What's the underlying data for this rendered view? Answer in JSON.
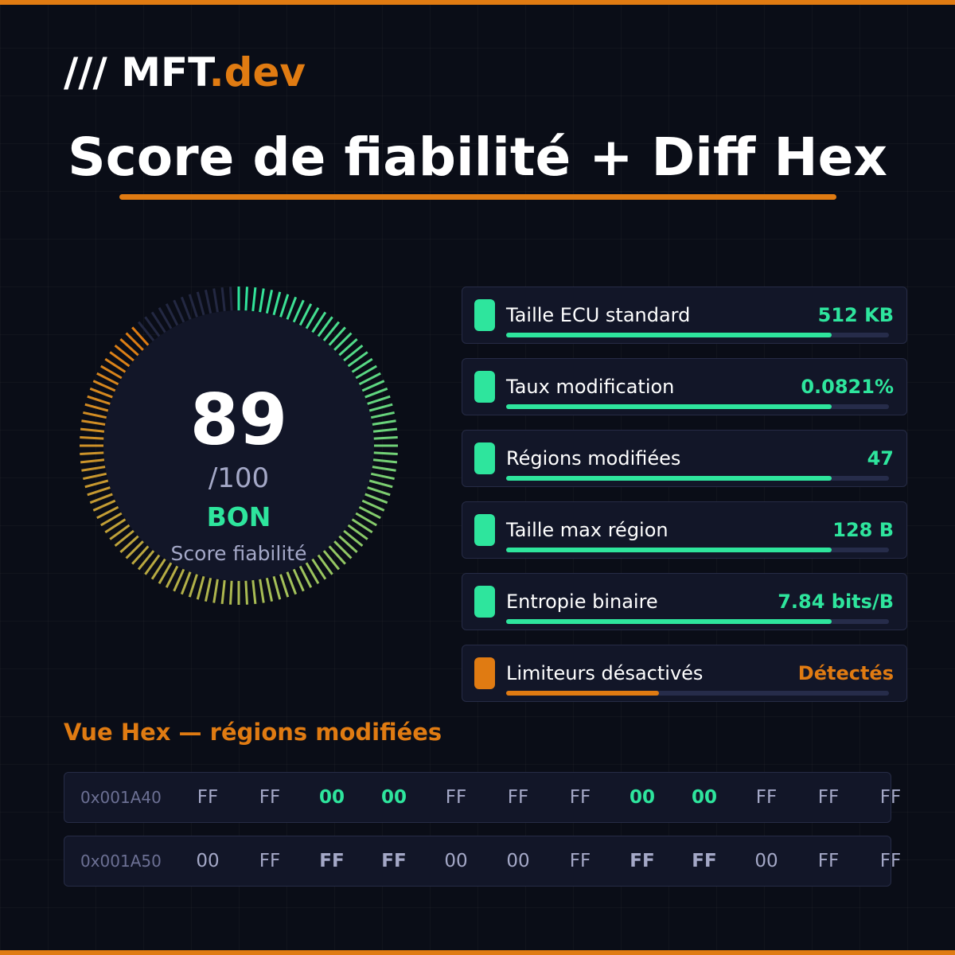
{
  "brand": {
    "slashes": "///",
    "name": "MFT",
    "tld": ".dev",
    "accent_color": "#e07b12"
  },
  "title": "Score de fiabilité + Diff Hex",
  "gauge": {
    "value": "89",
    "max_label": "/100",
    "rating": "BON",
    "caption": "Score fiabilité",
    "score": 89,
    "max": 100,
    "colors": {
      "start": "#2ee59d",
      "mid": "#a3c25a",
      "end": "#e07b12",
      "empty": "#232842"
    }
  },
  "metrics": [
    {
      "label": "Taille ECU standard",
      "value": "512 KB",
      "status": "ok",
      "fill": 0.85
    },
    {
      "label": "Taux modification",
      "value": "0.0821%",
      "status": "ok",
      "fill": 0.85
    },
    {
      "label": "Régions modifiées",
      "value": "47",
      "status": "ok",
      "fill": 0.85
    },
    {
      "label": "Taille max région",
      "value": "128 B",
      "status": "ok",
      "fill": 0.85
    },
    {
      "label": "Entropie binaire",
      "value": "7.84 bits/B",
      "status": "ok",
      "fill": 0.85
    },
    {
      "label": "Limiteurs désactivés",
      "value": "Détectés",
      "status": "warn",
      "fill": 0.4
    }
  ],
  "status_colors": {
    "ok": "#2ee59d",
    "warn": "#e07b12"
  },
  "hex": {
    "title": "Vue Hex — régions modifiées",
    "rows": [
      {
        "address": "0x001A40",
        "bytes": [
          {
            "v": "FF",
            "modified": false
          },
          {
            "v": "FF",
            "modified": false
          },
          {
            "v": "00",
            "modified": true
          },
          {
            "v": "00",
            "modified": true
          },
          {
            "v": "FF",
            "modified": false
          },
          {
            "v": "FF",
            "modified": false
          },
          {
            "v": "FF",
            "modified": false
          },
          {
            "v": "00",
            "modified": true
          },
          {
            "v": "00",
            "modified": true
          },
          {
            "v": "FF",
            "modified": false
          },
          {
            "v": "FF",
            "modified": false
          },
          {
            "v": "FF",
            "modified": false
          }
        ]
      },
      {
        "address": "0x001A50",
        "bytes": [
          {
            "v": "00",
            "modified": false
          },
          {
            "v": "FF",
            "modified": false
          },
          {
            "v": "FF",
            "modified": true
          },
          {
            "v": "FF",
            "modified": true
          },
          {
            "v": "00",
            "modified": false
          },
          {
            "v": "00",
            "modified": false
          },
          {
            "v": "FF",
            "modified": false
          },
          {
            "v": "FF",
            "modified": true
          },
          {
            "v": "FF",
            "modified": true
          },
          {
            "v": "00",
            "modified": false
          },
          {
            "v": "FF",
            "modified": false
          },
          {
            "v": "FF",
            "modified": false
          }
        ]
      }
    ]
  }
}
